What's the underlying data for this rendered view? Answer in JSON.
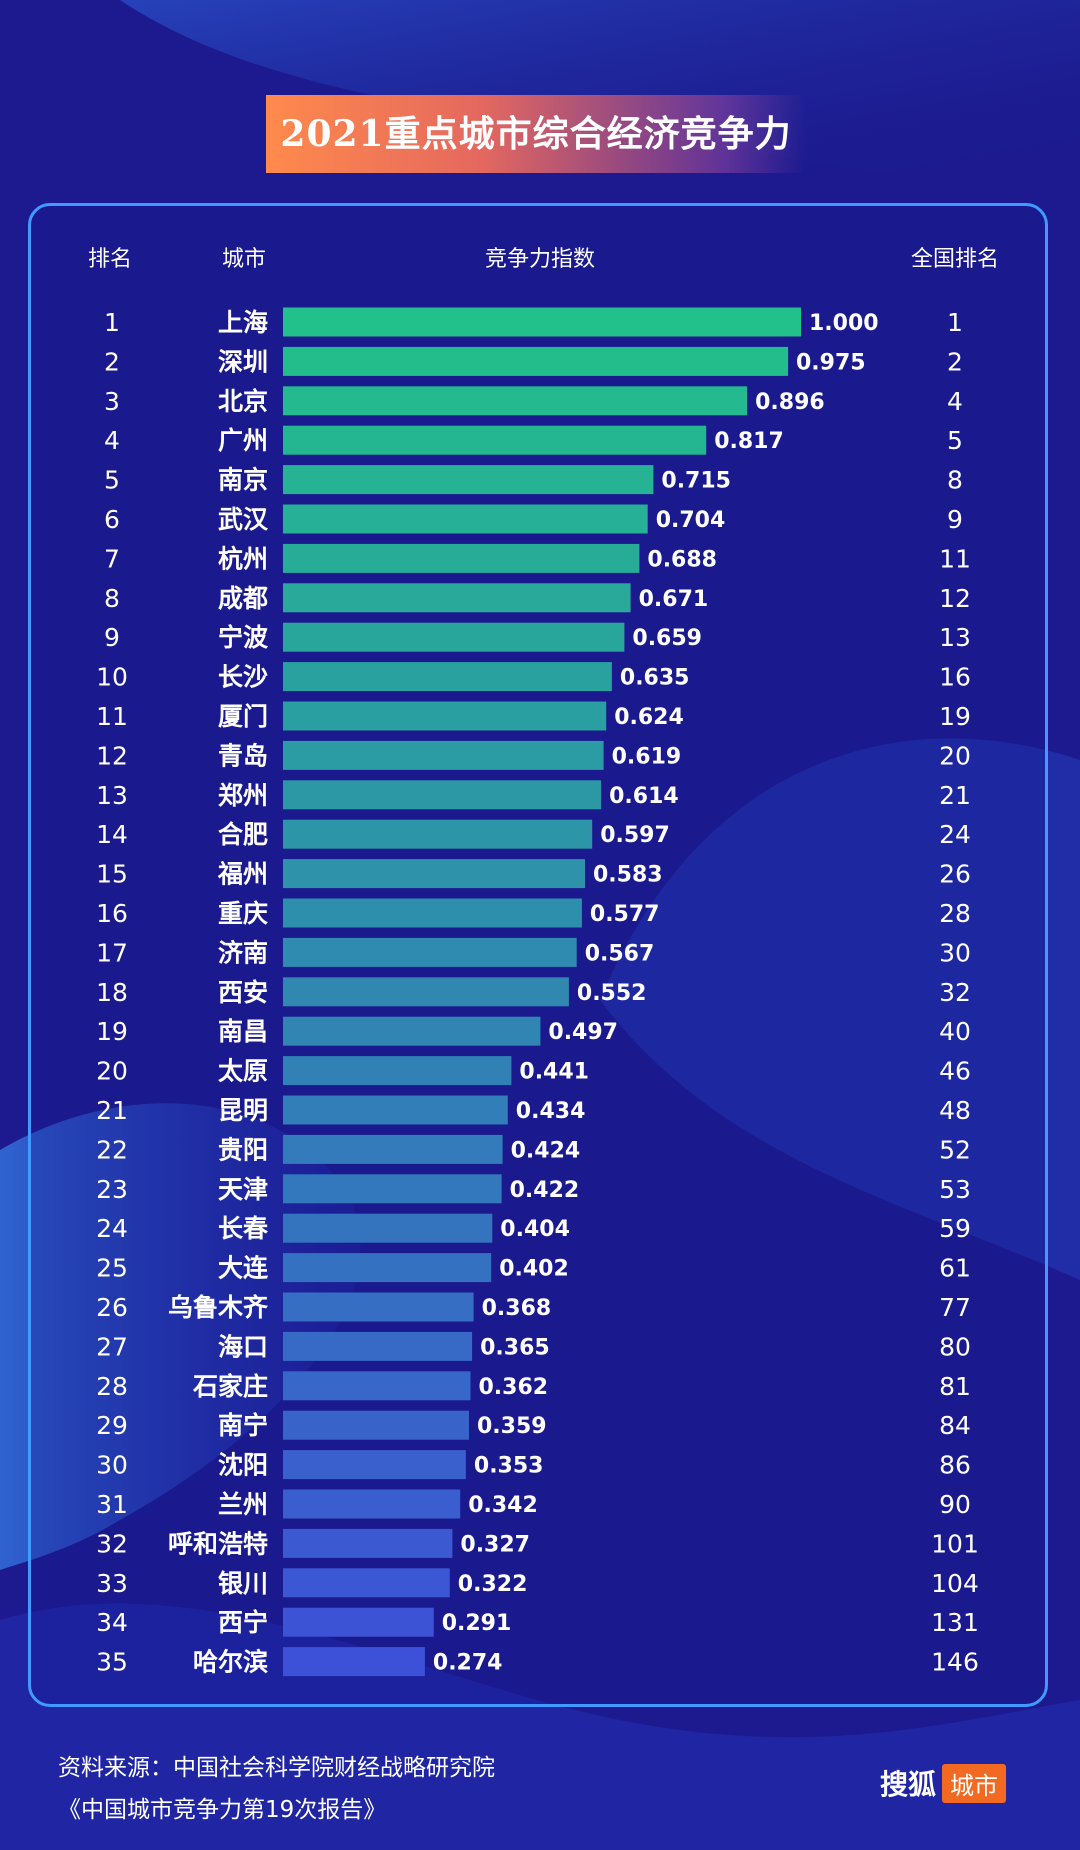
{
  "title": "2021重点城市综合经济竞争力",
  "colors": {
    "background": "#1c1a8e",
    "panel_border": "#3f9bff",
    "bar_top": "#22c08a",
    "bar_bottom": "#3d50d8",
    "title_banner_left": "#ff8a4c",
    "logo_tag": "#f26a21"
  },
  "headers": {
    "rank": "排名",
    "city": "城市",
    "index": "竞争力指数",
    "national_rank": "全国排名"
  },
  "chart_data": {
    "type": "bar",
    "orientation": "horizontal",
    "title": "2021重点城市综合经济竞争力",
    "xlim": [
      0,
      1.0
    ],
    "grid": false,
    "rows": [
      {
        "rank": "1",
        "city": "上海",
        "value": 1.0,
        "label": "1.000",
        "national_rank": "1"
      },
      {
        "rank": "2",
        "city": "深圳",
        "value": 0.975,
        "label": "0.975",
        "national_rank": "2"
      },
      {
        "rank": "3",
        "city": "北京",
        "value": 0.896,
        "label": "0.896",
        "national_rank": "4"
      },
      {
        "rank": "4",
        "city": "广州",
        "value": 0.817,
        "label": "0.817",
        "national_rank": "5"
      },
      {
        "rank": "5",
        "city": "南京",
        "value": 0.715,
        "label": "0.715",
        "national_rank": "8"
      },
      {
        "rank": "6",
        "city": "武汉",
        "value": 0.704,
        "label": "0.704",
        "national_rank": "9"
      },
      {
        "rank": "7",
        "city": "杭州",
        "value": 0.688,
        "label": "0.688",
        "national_rank": "11"
      },
      {
        "rank": "8",
        "city": "成都",
        "value": 0.671,
        "label": "0.671",
        "national_rank": "12"
      },
      {
        "rank": "9",
        "city": "宁波",
        "value": 0.659,
        "label": "0.659",
        "national_rank": "13"
      },
      {
        "rank": "10",
        "city": "长沙",
        "value": 0.635,
        "label": "0.635",
        "national_rank": "16"
      },
      {
        "rank": "11",
        "city": "厦门",
        "value": 0.624,
        "label": "0.624",
        "national_rank": "19"
      },
      {
        "rank": "12",
        "city": "青岛",
        "value": 0.619,
        "label": "0.619",
        "national_rank": "20"
      },
      {
        "rank": "13",
        "city": "郑州",
        "value": 0.614,
        "label": "0.614",
        "national_rank": "21"
      },
      {
        "rank": "14",
        "city": "合肥",
        "value": 0.597,
        "label": "0.597",
        "national_rank": "24"
      },
      {
        "rank": "15",
        "city": "福州",
        "value": 0.583,
        "label": "0.583",
        "national_rank": "26"
      },
      {
        "rank": "16",
        "city": "重庆",
        "value": 0.577,
        "label": "0.577",
        "national_rank": "28"
      },
      {
        "rank": "17",
        "city": "济南",
        "value": 0.567,
        "label": "0.567",
        "national_rank": "30"
      },
      {
        "rank": "18",
        "city": "西安",
        "value": 0.552,
        "label": "0.552",
        "national_rank": "32"
      },
      {
        "rank": "19",
        "city": "南昌",
        "value": 0.497,
        "label": "0.497",
        "national_rank": "40"
      },
      {
        "rank": "20",
        "city": "太原",
        "value": 0.441,
        "label": "0.441",
        "national_rank": "46"
      },
      {
        "rank": "21",
        "city": "昆明",
        "value": 0.434,
        "label": "0.434",
        "national_rank": "48"
      },
      {
        "rank": "22",
        "city": "贵阳",
        "value": 0.424,
        "label": "0.424",
        "national_rank": "52"
      },
      {
        "rank": "23",
        "city": "天津",
        "value": 0.422,
        "label": "0.422",
        "national_rank": "53"
      },
      {
        "rank": "24",
        "city": "长春",
        "value": 0.404,
        "label": "0.404",
        "national_rank": "59"
      },
      {
        "rank": "25",
        "city": "大连",
        "value": 0.402,
        "label": "0.402",
        "national_rank": "61"
      },
      {
        "rank": "26",
        "city": "乌鲁木齐",
        "value": 0.368,
        "label": "0.368",
        "national_rank": "77"
      },
      {
        "rank": "27",
        "city": "海口",
        "value": 0.365,
        "label": "0.365",
        "national_rank": "80"
      },
      {
        "rank": "28",
        "city": "石家庄",
        "value": 0.362,
        "label": "0.362",
        "national_rank": "81"
      },
      {
        "rank": "29",
        "city": "南宁",
        "value": 0.359,
        "label": "0.359",
        "national_rank": "84"
      },
      {
        "rank": "30",
        "city": "沈阳",
        "value": 0.353,
        "label": "0.353",
        "national_rank": "86"
      },
      {
        "rank": "31",
        "city": "兰州",
        "value": 0.342,
        "label": "0.342",
        "national_rank": "90"
      },
      {
        "rank": "32",
        "city": "呼和浩特",
        "value": 0.327,
        "label": "0.327",
        "national_rank": "101"
      },
      {
        "rank": "33",
        "city": "银川",
        "value": 0.322,
        "label": "0.322",
        "national_rank": "104"
      },
      {
        "rank": "34",
        "city": "西宁",
        "value": 0.291,
        "label": "0.291",
        "national_rank": "131"
      },
      {
        "rank": "35",
        "city": "哈尔滨",
        "value": 0.274,
        "label": "0.274",
        "national_rank": "146"
      }
    ]
  },
  "footer": {
    "source": "资料来源：中国社会科学院财经战略研究院",
    "report": "《中国城市竞争力第19次报告》"
  },
  "logo": {
    "main": "搜狐",
    "tag": "城市"
  }
}
